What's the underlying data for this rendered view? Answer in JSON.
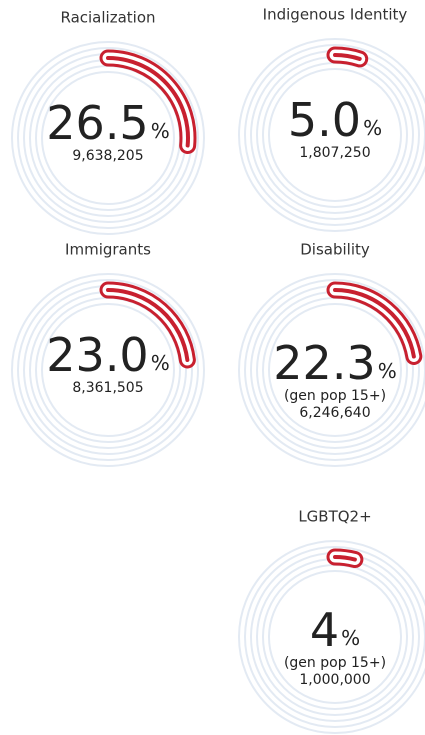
{
  "chart_data": [
    {
      "type": "ring",
      "title": "Racialization",
      "value": 26.5,
      "unit": "%",
      "count": 9638205,
      "count_label": "9,638,205",
      "color": "#c8202f"
    },
    {
      "type": "ring",
      "title": "Indigenous Identity",
      "value": 5,
      "value_label": "5.0",
      "unit": "%",
      "count": 1807250,
      "count_label": "1,807,250",
      "color": "#c8202f"
    },
    {
      "type": "ring",
      "title": "Immigrants",
      "value": 23,
      "value_label": "23.0",
      "unit": "%",
      "count": 8361505,
      "count_label": "8,361,505",
      "color": "#c8202f"
    },
    {
      "type": "ring",
      "title": "Disability",
      "value": 22.3,
      "unit": "%",
      "note": "(gen pop 15+)",
      "count": 6246640,
      "count_label": "6,246,640",
      "color": "#c8202f"
    },
    {
      "type": "ring",
      "title": "LGBTQ2+",
      "value": 4,
      "unit": "%",
      "note": "(gen pop 15+)",
      "count": 1000000,
      "count_label": "1,000,000",
      "color": "#c8202f"
    }
  ]
}
